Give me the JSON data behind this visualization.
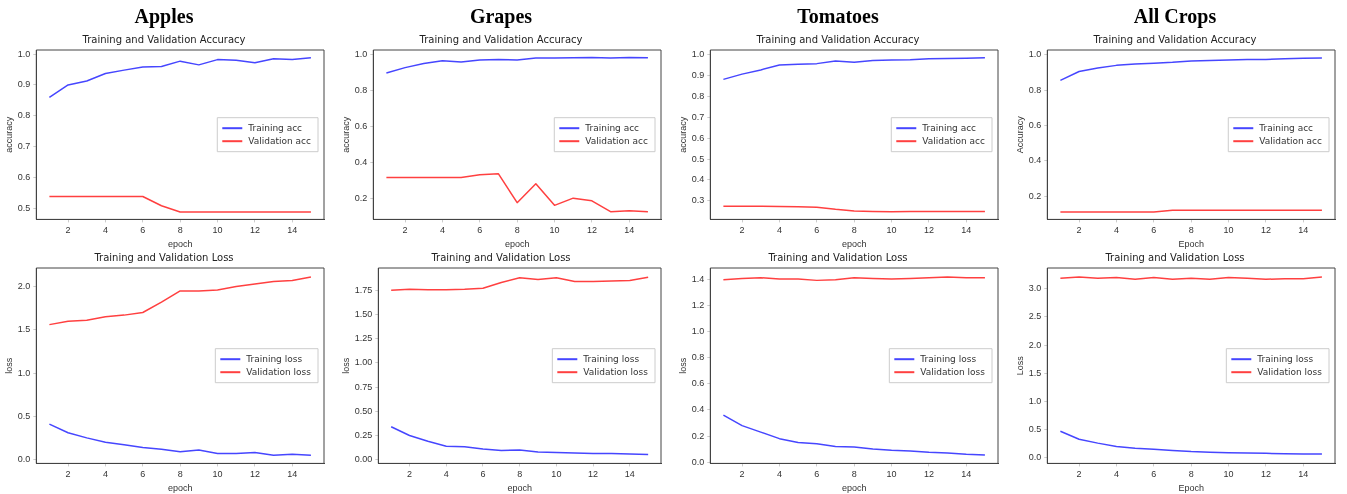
{
  "chart_data": [
    {
      "type": "line",
      "title": "Apples",
      "subtitle": "Training and Validation Accuracy",
      "xlabel": "epoch",
      "ylabel": "accuracy",
      "legend": "right",
      "x": [
        1,
        2,
        3,
        4,
        5,
        6,
        7,
        8,
        9,
        10,
        11,
        12,
        13,
        14,
        15
      ],
      "xlim": [
        0.3,
        15.7
      ],
      "xticks": [
        2,
        4,
        6,
        8,
        10,
        12,
        14
      ],
      "ylim": [
        0.466,
        1.013
      ],
      "yticks": [
        {
          "value": 0.5,
          "label": "0.5"
        },
        {
          "value": 0.6,
          "label": "0.6"
        },
        {
          "value": 0.7,
          "label": "0.7"
        },
        {
          "value": 0.8,
          "label": "0.8"
        },
        {
          "value": 0.9,
          "label": "0.9"
        },
        {
          "value": 1,
          "label": "1.0"
        }
      ],
      "series": [
        {
          "name": "Training acc",
          "color": "#4646ff",
          "values": [
            0.86,
            0.9,
            0.913,
            0.937,
            0.948,
            0.958,
            0.96,
            0.977,
            0.965,
            0.982,
            0.98,
            0.972,
            0.985,
            0.982,
            0.988
          ]
        },
        {
          "name": "Validation acc",
          "color": "#ff4040",
          "values": [
            0.54,
            0.54,
            0.54,
            0.54,
            0.54,
            0.54,
            0.51,
            0.49,
            0.49,
            0.49,
            0.49,
            0.49,
            0.49,
            0.49,
            0.49
          ]
        }
      ]
    },
    {
      "type": "line",
      "title": "Grapes",
      "subtitle": "Training and Validation Accuracy",
      "xlabel": "epoch",
      "ylabel": "accuracy",
      "legend": "right",
      "x": [
        1,
        2,
        3,
        4,
        5,
        6,
        7,
        8,
        9,
        10,
        11,
        12,
        13,
        14,
        15
      ],
      "xlim": [
        0.3,
        15.7
      ],
      "xticks": [
        2,
        4,
        6,
        8,
        10,
        12,
        14
      ],
      "ylim": [
        0.082,
        1.023
      ],
      "yticks": [
        {
          "value": 0.2,
          "label": "0.2"
        },
        {
          "value": 0.4,
          "label": "0.4"
        },
        {
          "value": 0.6,
          "label": "0.6"
        },
        {
          "value": 0.8,
          "label": "0.8"
        },
        {
          "value": 1,
          "label": "1.0"
        }
      ],
      "series": [
        {
          "name": "Training acc",
          "color": "#4646ff",
          "values": [
            0.895,
            0.925,
            0.948,
            0.963,
            0.957,
            0.968,
            0.97,
            0.968,
            0.978,
            0.978,
            0.98,
            0.982,
            0.978,
            0.982,
            0.98
          ]
        },
        {
          "name": "Validation acc",
          "color": "#ff4040",
          "values": [
            0.315,
            0.315,
            0.315,
            0.315,
            0.315,
            0.33,
            0.335,
            0.175,
            0.28,
            0.16,
            0.2,
            0.185,
            0.125,
            0.13,
            0.125
          ]
        }
      ]
    },
    {
      "type": "line",
      "title": "Tomatoes",
      "subtitle": "Training and Validation Accuracy",
      "xlabel": "epoch",
      "ylabel": "accuracy",
      "legend": "right",
      "x": [
        1,
        2,
        3,
        4,
        5,
        6,
        7,
        8,
        9,
        10,
        11,
        12,
        13,
        14,
        15
      ],
      "xlim": [
        0.3,
        15.7
      ],
      "xticks": [
        2,
        4,
        6,
        8,
        10,
        12,
        14
      ],
      "ylim": [
        0.212,
        1.02
      ],
      "yticks": [
        {
          "value": 0.3,
          "label": "0.3"
        },
        {
          "value": 0.4,
          "label": "0.4"
        },
        {
          "value": 0.5,
          "label": "0.5"
        },
        {
          "value": 0.6,
          "label": "0.6"
        },
        {
          "value": 0.7,
          "label": "0.7"
        },
        {
          "value": 0.8,
          "label": "0.8"
        },
        {
          "value": 0.9,
          "label": "0.9"
        },
        {
          "value": 1,
          "label": "1.0"
        }
      ],
      "series": [
        {
          "name": "Training acc",
          "color": "#4646ff",
          "values": [
            0.88,
            0.905,
            0.925,
            0.948,
            0.952,
            0.955,
            0.967,
            0.962,
            0.97,
            0.972,
            0.973,
            0.978,
            0.979,
            0.981,
            0.983
          ]
        },
        {
          "name": "Validation acc",
          "color": "#ff4040",
          "values": [
            0.275,
            0.275,
            0.275,
            0.273,
            0.272,
            0.27,
            0.26,
            0.252,
            0.25,
            0.249,
            0.25,
            0.25,
            0.25,
            0.25,
            0.25
          ]
        }
      ]
    },
    {
      "type": "line",
      "title": "All Crops",
      "subtitle": "Training and Validation Accuracy",
      "xlabel": "Epoch",
      "ylabel": "Accuracy",
      "legend": "right",
      "x": [
        1,
        2,
        3,
        4,
        5,
        6,
        7,
        8,
        9,
        10,
        11,
        12,
        13,
        14,
        15
      ],
      "xlim": [
        0.3,
        15.7
      ],
      "xticks": [
        2,
        4,
        6,
        8,
        10,
        12,
        14
      ],
      "ylim": [
        0.068,
        1.027
      ],
      "yticks": [
        {
          "value": 0.2,
          "label": "0.2"
        },
        {
          "value": 0.4,
          "label": "0.4"
        },
        {
          "value": 0.6,
          "label": "0.6"
        },
        {
          "value": 0.8,
          "label": "0.8"
        },
        {
          "value": 1,
          "label": "1.0"
        }
      ],
      "series": [
        {
          "name": "Training acc",
          "color": "#4646ff",
          "values": [
            0.855,
            0.905,
            0.925,
            0.94,
            0.948,
            0.952,
            0.957,
            0.965,
            0.968,
            0.97,
            0.973,
            0.973,
            0.978,
            0.98,
            0.982
          ]
        },
        {
          "name": "Validation acc",
          "color": "#ff4040",
          "values": [
            0.11,
            0.11,
            0.11,
            0.11,
            0.11,
            0.11,
            0.12,
            0.12,
            0.12,
            0.12,
            0.12,
            0.12,
            0.12,
            0.12,
            0.12
          ]
        }
      ]
    },
    {
      "type": "line",
      "title": "Training and Validation Loss",
      "xlabel": "epoch",
      "ylabel": "loss",
      "legend": "right",
      "x": [
        1,
        2,
        3,
        4,
        5,
        6,
        7,
        8,
        9,
        10,
        11,
        12,
        13,
        14,
        15
      ],
      "xlim": [
        0.3,
        15.7
      ],
      "xticks": [
        2,
        4,
        6,
        8,
        10,
        12,
        14
      ],
      "ylim": [
        -0.045,
        2.215
      ],
      "yticks": [
        {
          "value": 0,
          "label": "0.0"
        },
        {
          "value": 0.5,
          "label": "0.5"
        },
        {
          "value": 1,
          "label": "1.0"
        },
        {
          "value": 1.5,
          "label": "1.5"
        },
        {
          "value": 2,
          "label": "2.0"
        }
      ],
      "series": [
        {
          "name": "Training loss",
          "color": "#4646ff",
          "values": [
            0.41,
            0.31,
            0.25,
            0.2,
            0.17,
            0.14,
            0.12,
            0.09,
            0.11,
            0.07,
            0.07,
            0.08,
            0.05,
            0.06,
            0.05
          ]
        },
        {
          "name": "Validation loss",
          "color": "#ff4040",
          "values": [
            1.56,
            1.6,
            1.61,
            1.65,
            1.67,
            1.7,
            1.82,
            1.95,
            1.95,
            1.96,
            2.0,
            2.03,
            2.06,
            2.07,
            2.11
          ]
        }
      ]
    },
    {
      "type": "line",
      "title": "Training and Validation Loss",
      "xlabel": "epoch",
      "ylabel": "loss",
      "legend": "right",
      "x": [
        1,
        2,
        3,
        4,
        5,
        6,
        7,
        8,
        9,
        10,
        11,
        12,
        13,
        14,
        15
      ],
      "xlim": [
        0.3,
        15.7
      ],
      "xticks": [
        2,
        4,
        6,
        8,
        10,
        12,
        14
      ],
      "ylim": [
        -0.038,
        1.98
      ],
      "yticks": [
        {
          "value": 0,
          "label": "0.00"
        },
        {
          "value": 0.25,
          "label": "0.25"
        },
        {
          "value": 0.5,
          "label": "0.50"
        },
        {
          "value": 0.75,
          "label": "0.75"
        },
        {
          "value": 1,
          "label": "1.00"
        },
        {
          "value": 1.25,
          "label": "1.25"
        },
        {
          "value": 1.5,
          "label": "1.50"
        },
        {
          "value": 1.75,
          "label": "1.75"
        }
      ],
      "series": [
        {
          "name": "Training loss",
          "color": "#4646ff",
          "values": [
            0.34,
            0.25,
            0.19,
            0.14,
            0.135,
            0.11,
            0.095,
            0.1,
            0.08,
            0.075,
            0.07,
            0.065,
            0.065,
            0.06,
            0.055
          ]
        },
        {
          "name": "Validation loss",
          "color": "#ff4040",
          "values": [
            1.75,
            1.76,
            1.755,
            1.755,
            1.76,
            1.77,
            1.83,
            1.88,
            1.86,
            1.88,
            1.84,
            1.84,
            1.845,
            1.85,
            1.885
          ]
        }
      ]
    },
    {
      "type": "line",
      "title": "Training and Validation Loss",
      "xlabel": "epoch",
      "ylabel": "loss",
      "legend": "right",
      "x": [
        1,
        2,
        3,
        4,
        5,
        6,
        7,
        8,
        9,
        10,
        11,
        12,
        13,
        14,
        15
      ],
      "xlim": [
        0.3,
        15.7
      ],
      "xticks": [
        2,
        4,
        6,
        8,
        10,
        12,
        14
      ],
      "ylim": [
        -0.01,
        1.49
      ],
      "yticks": [
        {
          "value": 0,
          "label": "0.0"
        },
        {
          "value": 0.2,
          "label": "0.2"
        },
        {
          "value": 0.4,
          "label": "0.4"
        },
        {
          "value": 0.6,
          "label": "0.6"
        },
        {
          "value": 0.8,
          "label": "0.8"
        },
        {
          "value": 1,
          "label": "1.0"
        },
        {
          "value": 1.2,
          "label": "1.2"
        },
        {
          "value": 1.4,
          "label": "1.4"
        }
      ],
      "series": [
        {
          "name": "Training loss",
          "color": "#4646ff",
          "values": [
            0.36,
            0.28,
            0.23,
            0.18,
            0.15,
            0.14,
            0.12,
            0.115,
            0.1,
            0.09,
            0.085,
            0.075,
            0.07,
            0.06,
            0.055
          ]
        },
        {
          "name": "Validation loss",
          "color": "#ff4040",
          "values": [
            1.4,
            1.41,
            1.415,
            1.405,
            1.405,
            1.395,
            1.4,
            1.415,
            1.41,
            1.405,
            1.41,
            1.415,
            1.42,
            1.415,
            1.415
          ]
        }
      ]
    },
    {
      "type": "line",
      "title": "Training and Validation Loss",
      "xlabel": "Epoch",
      "ylabel": "Loss",
      "legend": "right",
      "x": [
        1,
        2,
        3,
        4,
        5,
        6,
        7,
        8,
        9,
        10,
        11,
        12,
        13,
        14,
        15
      ],
      "xlim": [
        0.3,
        15.7
      ],
      "xticks": [
        2,
        4,
        6,
        8,
        10,
        12,
        14
      ],
      "ylim": [
        -0.1,
        3.37
      ],
      "yticks": [
        {
          "value": 0,
          "label": "0.0"
        },
        {
          "value": 0.5,
          "label": "0.5"
        },
        {
          "value": 1,
          "label": "1.0"
        },
        {
          "value": 1.5,
          "label": "1.5"
        },
        {
          "value": 2,
          "label": "2.0"
        },
        {
          "value": 2.5,
          "label": "2.5"
        },
        {
          "value": 3,
          "label": "3.0"
        }
      ],
      "series": [
        {
          "name": "Training loss",
          "color": "#4646ff",
          "values": [
            0.47,
            0.33,
            0.26,
            0.2,
            0.17,
            0.15,
            0.13,
            0.11,
            0.1,
            0.09,
            0.085,
            0.08,
            0.07,
            0.065,
            0.065
          ]
        },
        {
          "name": "Validation loss",
          "color": "#ff4040",
          "values": [
            3.19,
            3.21,
            3.19,
            3.2,
            3.17,
            3.2,
            3.17,
            3.19,
            3.17,
            3.2,
            3.19,
            3.17,
            3.18,
            3.18,
            3.21
          ]
        }
      ]
    }
  ]
}
